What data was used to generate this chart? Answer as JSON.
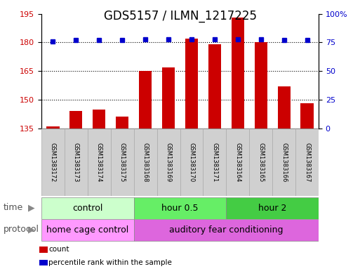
{
  "title": "GDS5157 / ILMN_1217225",
  "samples": [
    "GSM1383172",
    "GSM1383173",
    "GSM1383174",
    "GSM1383175",
    "GSM1383168",
    "GSM1383169",
    "GSM1383170",
    "GSM1383171",
    "GSM1383164",
    "GSM1383165",
    "GSM1383166",
    "GSM1383167"
  ],
  "counts": [
    136,
    144,
    145,
    141,
    165,
    167,
    182,
    179,
    193,
    180,
    157,
    148
  ],
  "percentiles": [
    76,
    77,
    77,
    77,
    78,
    78,
    78,
    78,
    78,
    78,
    77,
    77
  ],
  "ylim_left": [
    135,
    195
  ],
  "ylim_right": [
    0,
    100
  ],
  "yticks_left": [
    135,
    150,
    165,
    180,
    195
  ],
  "yticks_right": [
    0,
    25,
    50,
    75,
    100
  ],
  "bar_color": "#cc0000",
  "dot_color": "#0000cc",
  "time_groups": [
    {
      "label": "control",
      "start": 0,
      "end": 4,
      "color": "#ccffcc"
    },
    {
      "label": "hour 0.5",
      "start": 4,
      "end": 8,
      "color": "#66ee66"
    },
    {
      "label": "hour 2",
      "start": 8,
      "end": 12,
      "color": "#44cc44"
    }
  ],
  "protocol_groups": [
    {
      "label": "home cage control",
      "start": 0,
      "end": 4,
      "color": "#ff99ff"
    },
    {
      "label": "auditory fear conditioning",
      "start": 4,
      "end": 12,
      "color": "#dd66dd"
    }
  ],
  "legend_items": [
    {
      "color": "#cc0000",
      "label": "count"
    },
    {
      "color": "#0000cc",
      "label": "percentile rank within the sample"
    }
  ],
  "time_label": "time",
  "protocol_label": "protocol",
  "title_fontsize": 12,
  "tick_fontsize": 8,
  "label_fontsize": 9,
  "sample_fontsize": 6,
  "box_color": "#d0d0d0",
  "box_edge_color": "#aaaaaa"
}
